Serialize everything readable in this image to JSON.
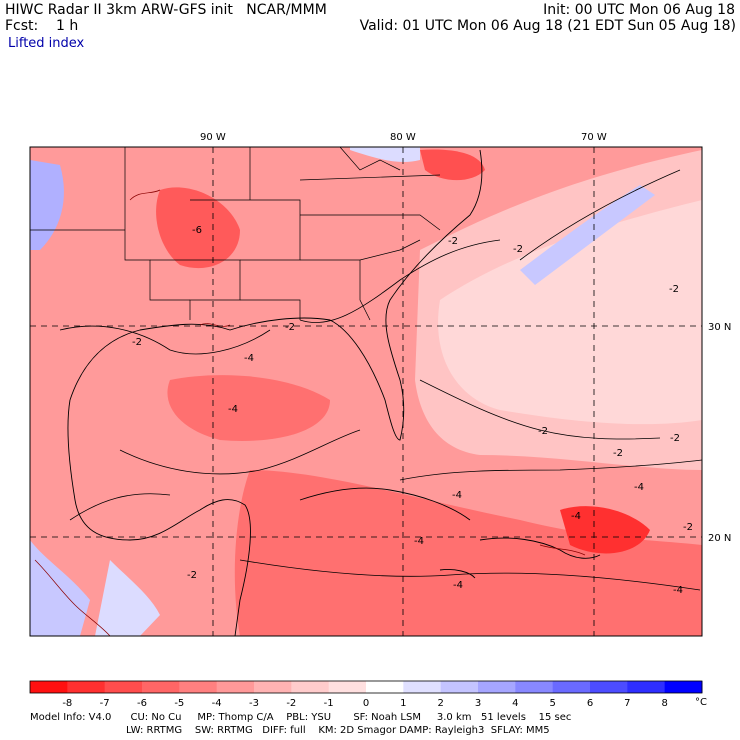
{
  "header": {
    "left_line1": "HIWC Radar II 3km ARW-GFS init   NCAR/MMM",
    "left_line2": "Fcst:    1 h",
    "right_line1": "Init: 00 UTC Mon 06 Aug 18",
    "right_line2": "Valid: 01 UTC Mon 06 Aug 18 (21 EDT Sun 05 Aug 18)",
    "field_name": "Lifted index"
  },
  "map": {
    "lon_labels": [
      "90 W",
      "80 W",
      "70 W"
    ],
    "lat_labels": [
      "30 N",
      "20 N"
    ],
    "contour_labels": [
      "-6",
      "-2",
      "-4",
      "-2",
      "-2",
      "-2",
      "-2",
      "-4",
      "-4",
      "-4",
      "-2",
      "-2",
      "-4",
      "-4",
      "-2",
      "-2",
      "-4",
      "-2",
      "-4"
    ],
    "colors": {
      "land_border": "#000000",
      "coast_detail": "#8b0000",
      "grid": "#000000"
    }
  },
  "colorbar": {
    "labels": [
      "-8",
      "-7",
      "-6",
      "-5",
      "-4",
      "-3",
      "-2",
      "-1",
      "0",
      "1",
      "2",
      "3",
      "4",
      "5",
      "6",
      "7",
      "8"
    ],
    "unit": "°C",
    "colors": [
      "#ff1010",
      "#ff3030",
      "#ff4d4d",
      "#ff6666",
      "#ff8080",
      "#ff9999",
      "#ffb3b3",
      "#ffcccc",
      "#ffe0e0",
      "#ffffff",
      "#e0e0ff",
      "#c4c4ff",
      "#a6a6ff",
      "#8888ff",
      "#6a6aff",
      "#4c4cff",
      "#2e2eff",
      "#0000ff"
    ]
  },
  "footer": {
    "line1": "Model Info: V4.0      CU: No Cu     MP: Thomp C/A    PBL: YSU       SF: Noah LSM     3.0 km   51 levels    15 sec",
    "line2": "LW: RRTMG    SW: RRTMG   DIFF: full    KM: 2D Smagor DAMP: Rayleigh3  SFLAY: MM5"
  }
}
